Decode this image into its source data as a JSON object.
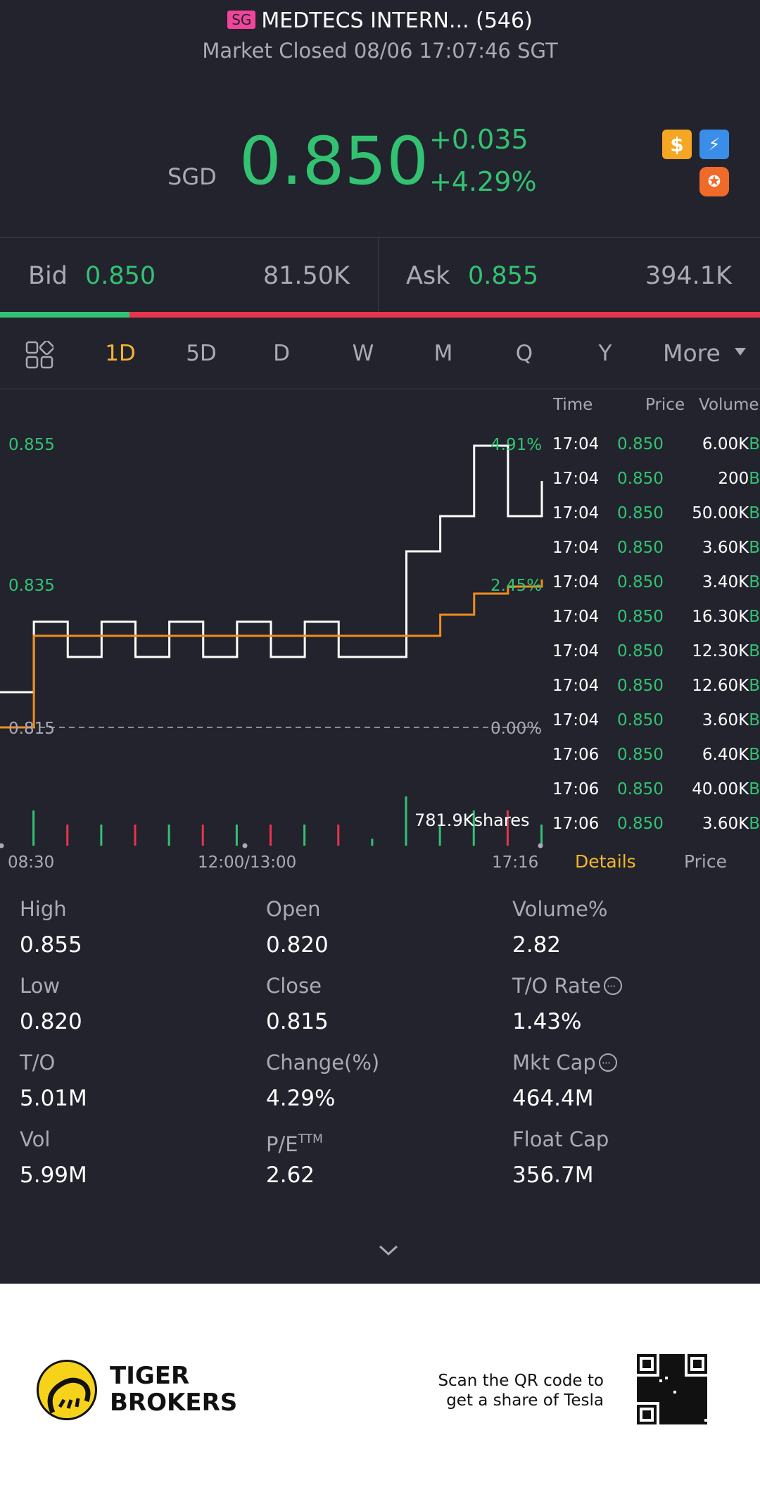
{
  "header": {
    "market_badge": "SG",
    "title": "MEDTECS INTERN... (546)",
    "status": "Market Closed 08/06 17:07:46 SGT"
  },
  "quote": {
    "currency": "SGD",
    "price": "0.850",
    "change": "+0.035",
    "change_pct": "+4.29%",
    "icons": [
      "dollar-icon",
      "lightning-icon",
      "margin-badge-icon"
    ]
  },
  "bid_ask": {
    "bid_label": "Bid",
    "bid_price": "0.850",
    "bid_volume": "81.50K",
    "ask_label": "Ask",
    "ask_price": "0.855",
    "ask_volume": "394.1K",
    "bid_share": 0.17
  },
  "tabs": {
    "items": [
      "1D",
      "5D",
      "D",
      "W",
      "M",
      "Q",
      "Y"
    ],
    "active": "1D",
    "more_label": "More"
  },
  "chart": {
    "labels": {
      "price_high": "0.855",
      "pct_high": "4.91%",
      "price_mid": "0.835",
      "pct_mid": "2.45%",
      "price_base": "0.815",
      "pct_base": "0.00%",
      "volume_note": "781.9Kshares"
    },
    "x_labels": [
      "08:30",
      "12:00/13:00",
      "17:16"
    ],
    "colors": {
      "price_line": "#ffffff",
      "avg_line": "#f08c1e",
      "up": "#32c272",
      "down": "#e8344e"
    }
  },
  "chart_data": {
    "type": "line",
    "title": "",
    "xlabel": "",
    "ylabel": "",
    "ylim": [
      0.815,
      0.855
    ],
    "x": [
      "08:30",
      "09:00",
      "09:30",
      "10:00",
      "10:30",
      "11:00",
      "11:30",
      "12:00/13:00",
      "13:30",
      "14:00",
      "14:30",
      "15:00",
      "15:30",
      "16:00",
      "16:30",
      "17:00",
      "17:16"
    ],
    "series": [
      {
        "name": "",
        "values": [
          0.82,
          0.83,
          0.825,
          0.83,
          0.825,
          0.83,
          0.825,
          0.83,
          0.825,
          0.83,
          0.825,
          0.825,
          0.84,
          0.845,
          0.855,
          0.845,
          0.85
        ]
      },
      {
        "name": "",
        "values": [
          0.815,
          0.828,
          0.828,
          0.828,
          0.828,
          0.828,
          0.828,
          0.828,
          0.828,
          0.828,
          0.828,
          0.828,
          0.828,
          0.831,
          0.834,
          0.835,
          0.836
        ]
      }
    ]
  },
  "trades": {
    "headers": {
      "time": "Time",
      "price": "Price",
      "volume": "Volume"
    },
    "rows": [
      {
        "time": "17:04",
        "price": "0.850",
        "volume": "6.00K",
        "side": "B"
      },
      {
        "time": "17:04",
        "price": "0.850",
        "volume": "200",
        "side": "B"
      },
      {
        "time": "17:04",
        "price": "0.850",
        "volume": "50.00K",
        "side": "B"
      },
      {
        "time": "17:04",
        "price": "0.850",
        "volume": "3.60K",
        "side": "B"
      },
      {
        "time": "17:04",
        "price": "0.850",
        "volume": "3.40K",
        "side": "B"
      },
      {
        "time": "17:04",
        "price": "0.850",
        "volume": "16.30K",
        "side": "B"
      },
      {
        "time": "17:04",
        "price": "0.850",
        "volume": "12.30K",
        "side": "B"
      },
      {
        "time": "17:04",
        "price": "0.850",
        "volume": "12.60K",
        "side": "B"
      },
      {
        "time": "17:04",
        "price": "0.850",
        "volume": "3.60K",
        "side": "B"
      },
      {
        "time": "17:06",
        "price": "0.850",
        "volume": "6.40K",
        "side": "B"
      },
      {
        "time": "17:06",
        "price": "0.850",
        "volume": "40.00K",
        "side": "B"
      },
      {
        "time": "17:06",
        "price": "0.850",
        "volume": "3.60K",
        "side": "B"
      }
    ],
    "tab_details": "Details",
    "tab_price": "Price"
  },
  "stats": {
    "high_label": "High",
    "high": "0.855",
    "open_label": "Open",
    "open": "0.820",
    "volpct_label": "Volume%",
    "volpct": "2.82",
    "low_label": "Low",
    "low": "0.820",
    "close_label": "Close",
    "close": "0.815",
    "torate_label": "T/O Rate",
    "torate": "1.43%",
    "to_label": "T/O",
    "to": "5.01M",
    "changepct_label": "Change(%)",
    "changepct": "4.29%",
    "mktcap_label": "Mkt Cap",
    "mktcap": "464.4M",
    "vol_label": "Vol",
    "vol": "5.99M",
    "pe_label": "P/E",
    "pe_sup": "TTM",
    "pe": "2.62",
    "floatcap_label": "Float Cap",
    "floatcap": "356.7M"
  },
  "footer": {
    "brand_line1": "TIGER",
    "brand_line2": "BROKERS",
    "qr_line1": "Scan the QR code to",
    "qr_line2": "get a share of Tesla"
  }
}
